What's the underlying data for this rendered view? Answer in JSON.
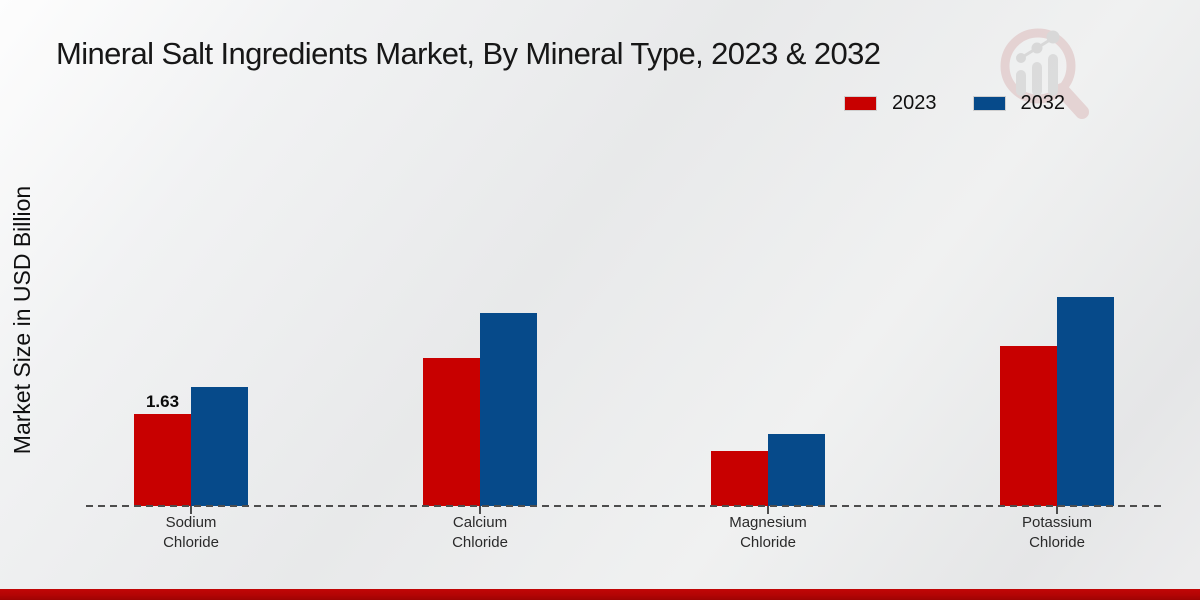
{
  "chart_data": {
    "type": "bar",
    "title": "Mineral Salt Ingredients Market, By Mineral Type, 2023 & 2032",
    "xlabel": "",
    "ylabel": "Market Size in USD Billion",
    "categories": [
      "Sodium\nChloride",
      "Calcium\nChloride",
      "Magnesium\nChloride",
      "Potassium\nChloride"
    ],
    "series": [
      {
        "name": "2023",
        "color": "#c80000",
        "values": [
          1.63,
          2.62,
          0.97,
          2.83
        ]
      },
      {
        "name": "2032",
        "color": "#064a8a",
        "values": [
          2.11,
          3.42,
          1.28,
          3.7
        ]
      }
    ],
    "ylim": [
      0,
      4.2
    ],
    "grid": false,
    "legend_position": "top-right",
    "axis_style": "dashed-baseline-only",
    "annotations": [
      {
        "series": "2023",
        "category_index": 0,
        "text": "1.63"
      }
    ]
  },
  "branding": {
    "watermark_icon": "magnifier-bar-chart-logo",
    "footer_bar_color": "#b30505"
  }
}
